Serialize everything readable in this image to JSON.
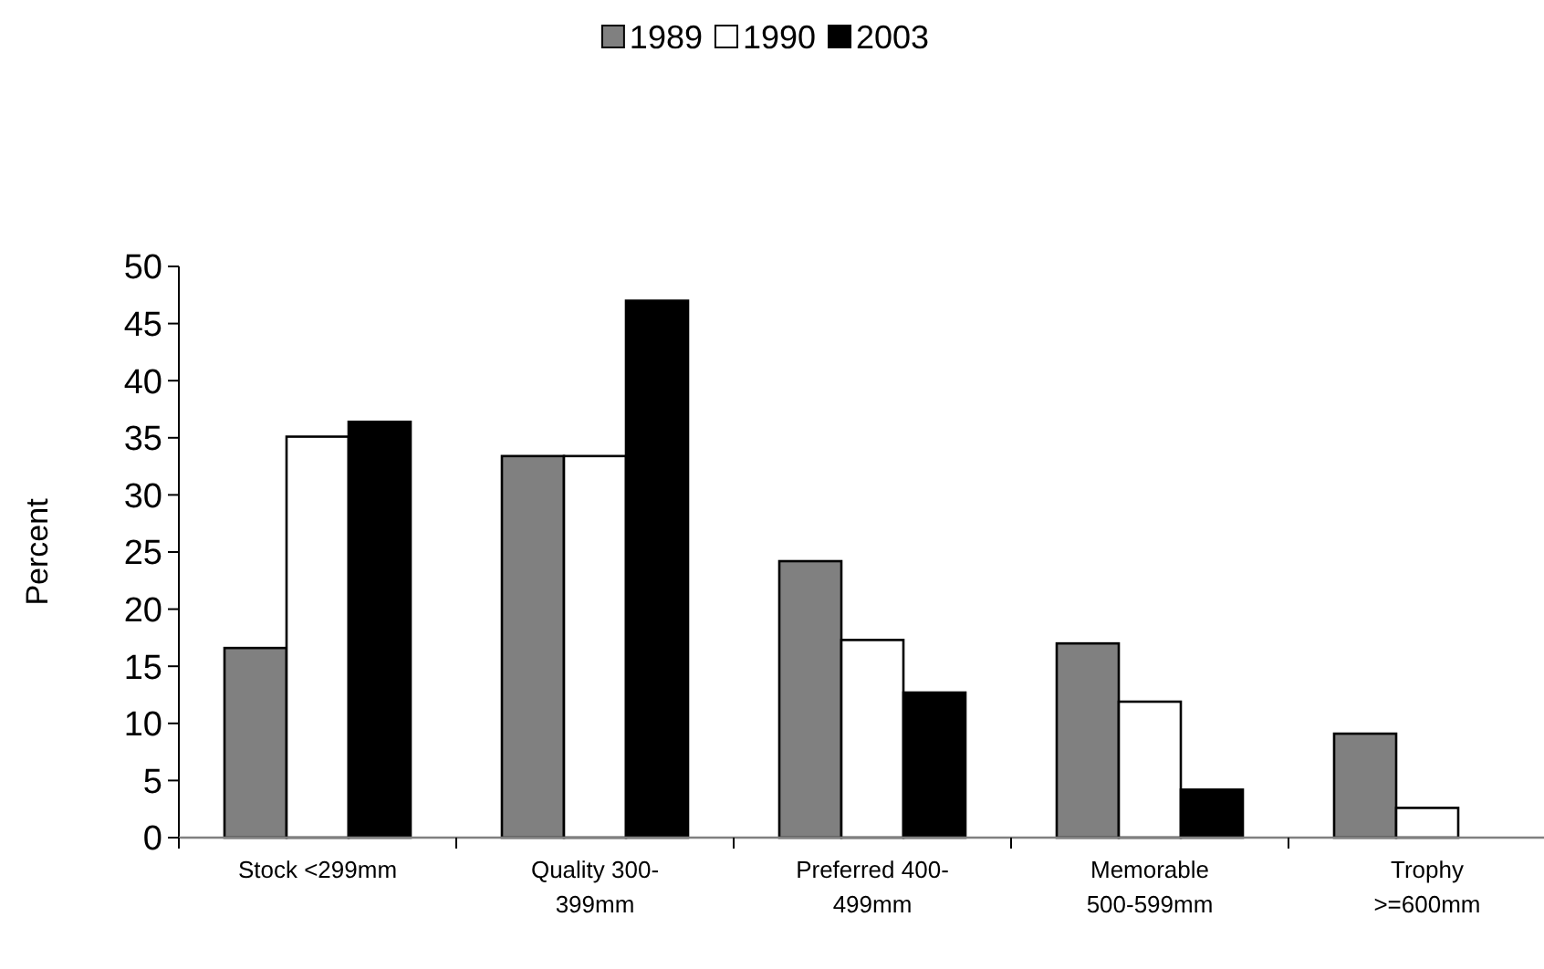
{
  "chart_data": {
    "type": "bar",
    "ylabel": "Percent",
    "categories": [
      "Stock <299mm",
      "Quality 300-399mm",
      "Preferred 400-499mm",
      "Memorable 500-599mm",
      "Trophy >=600mm"
    ],
    "series": [
      {
        "name": "1989",
        "color": "#808080",
        "values": [
          16.6,
          33.4,
          24.2,
          17.0,
          9.1
        ]
      },
      {
        "name": "1990",
        "color": "#ffffff",
        "values": [
          35.1,
          33.4,
          17.3,
          11.9,
          2.6
        ]
      },
      {
        "name": "2003",
        "color": "#000000",
        "values": [
          36.4,
          47.0,
          12.7,
          4.2,
          0
        ]
      }
    ],
    "ylim": [
      0,
      50
    ],
    "yticks": [
      0,
      5,
      10,
      15,
      20,
      25,
      30,
      35,
      40,
      45,
      50
    ],
    "legend": "top",
    "grid": false
  }
}
